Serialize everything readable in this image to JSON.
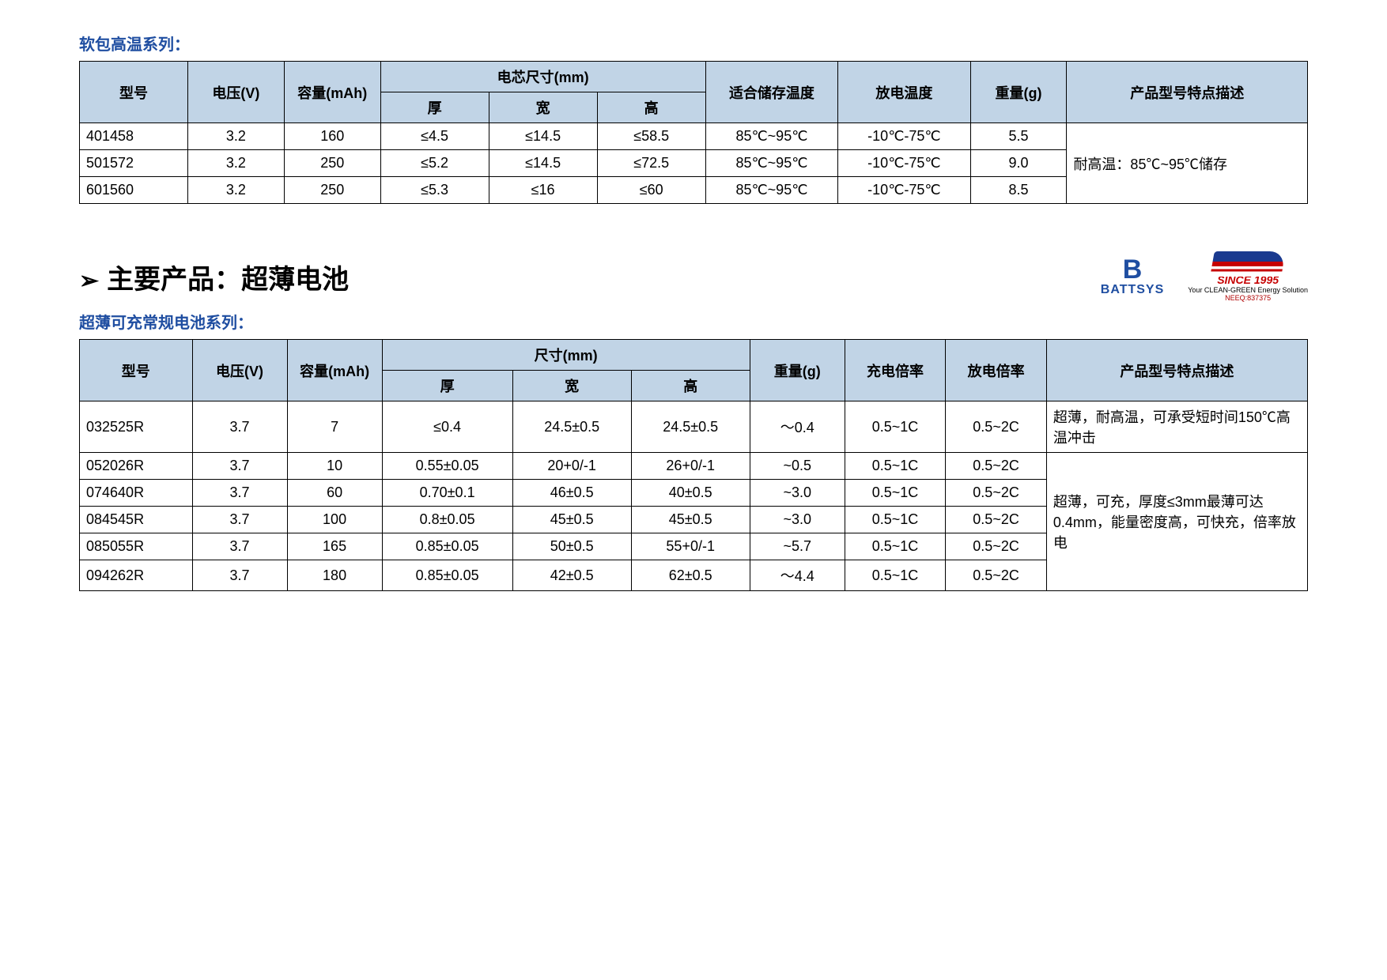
{
  "section1": {
    "title": "软包高温系列：",
    "headers": {
      "model": "型号",
      "voltage": "电压(V)",
      "capacity": "容量(mAh)",
      "dim_group": "电芯尺寸(mm)",
      "thick": "厚",
      "width": "宽",
      "height": "高",
      "storage": "适合储存温度",
      "discharge": "放电温度",
      "weight": "重量(g)",
      "desc": "产品型号特点描述"
    },
    "rows": [
      {
        "model": "401458",
        "voltage": "3.2",
        "capacity": "160",
        "thick": "≤4.5",
        "width": "≤14.5",
        "height": "≤58.5",
        "storage": "85℃~95℃",
        "discharge": "-10℃-75℃",
        "weight": "5.5"
      },
      {
        "model": "501572",
        "voltage": "3.2",
        "capacity": "250",
        "thick": "≤5.2",
        "width": "≤14.5",
        "height": "≤72.5",
        "storage": "85℃~95℃",
        "discharge": "-10℃-75℃",
        "weight": "9.0"
      },
      {
        "model": "601560",
        "voltage": "3.2",
        "capacity": "250",
        "thick": "≤5.3",
        "width": "≤16",
        "height": "≤60",
        "storage": "85℃~95℃",
        "discharge": "-10℃-75℃",
        "weight": "8.5"
      }
    ],
    "desc_merged": "耐高温：85℃~95℃储存"
  },
  "main_title": "主要产品：超薄电池",
  "logos": {
    "battsys_b": "B",
    "battsys_name": "BATTSYS",
    "fullriver_since": "SINCE 1995",
    "fullriver_slogan": "Your CLEAN-GREEN Energy Solution",
    "fullriver_code": "NEEQ:837375"
  },
  "section2": {
    "title": "超薄可充常规电池系列：",
    "headers": {
      "model": "型号",
      "voltage": "电压(V)",
      "capacity": "容量(mAh)",
      "dim_group": "尺寸(mm)",
      "thick": "厚",
      "width": "宽",
      "height": "高",
      "weight": "重量(g)",
      "charge_rate": "充电倍率",
      "discharge_rate": "放电倍率",
      "desc": "产品型号特点描述"
    },
    "rows": [
      {
        "model": "032525R",
        "voltage": "3.7",
        "capacity": "7",
        "thick": "≤0.4",
        "width": "24.5±0.5",
        "height": "24.5±0.5",
        "weight": "～0.4",
        "charge": "0.5~1C",
        "discharge": "0.5~2C",
        "desc": "超薄，耐高温，可承受短时间150℃高温冲击"
      },
      {
        "model": "052026R",
        "voltage": "3.7",
        "capacity": "10",
        "thick": "0.55±0.05",
        "width": "20+0/-1",
        "height": "26+0/-1",
        "weight": "~0.5",
        "charge": "0.5~1C",
        "discharge": "0.5~2C"
      },
      {
        "model": "074640R",
        "voltage": "3.7",
        "capacity": "60",
        "thick": "0.70±0.1",
        "width": "46±0.5",
        "height": "40±0.5",
        "weight": "~3.0",
        "charge": "0.5~1C",
        "discharge": "0.5~2C"
      },
      {
        "model": "084545R",
        "voltage": "3.7",
        "capacity": "100",
        "thick": "0.8±0.05",
        "width": "45±0.5",
        "height": "45±0.5",
        "weight": "~3.0",
        "charge": "0.5~1C",
        "discharge": "0.5~2C"
      },
      {
        "model": "085055R",
        "voltage": "3.7",
        "capacity": "165",
        "thick": "0.85±0.05",
        "width": "50±0.5",
        "height": "55+0/-1",
        "weight": "~5.7",
        "charge": "0.5~1C",
        "discharge": "0.5~2C"
      },
      {
        "model": "094262R",
        "voltage": "3.7",
        "capacity": "180",
        "thick": "0.85±0.05",
        "width": "42±0.5",
        "height": "62±0.5",
        "weight": "～4.4",
        "charge": "0.5~1C",
        "discharge": "0.5~2C"
      }
    ],
    "desc_merged": "超薄，可充，厚度≤3mm最薄可达0.4mm，能量密度高，可快充，倍率放电"
  },
  "style": {
    "header_bg": "#c1d4e6",
    "border_color": "#000000",
    "title_color": "#1f4ea1",
    "body_bg": "#ffffff",
    "header_font_size": 18,
    "cell_font_size": 18
  }
}
